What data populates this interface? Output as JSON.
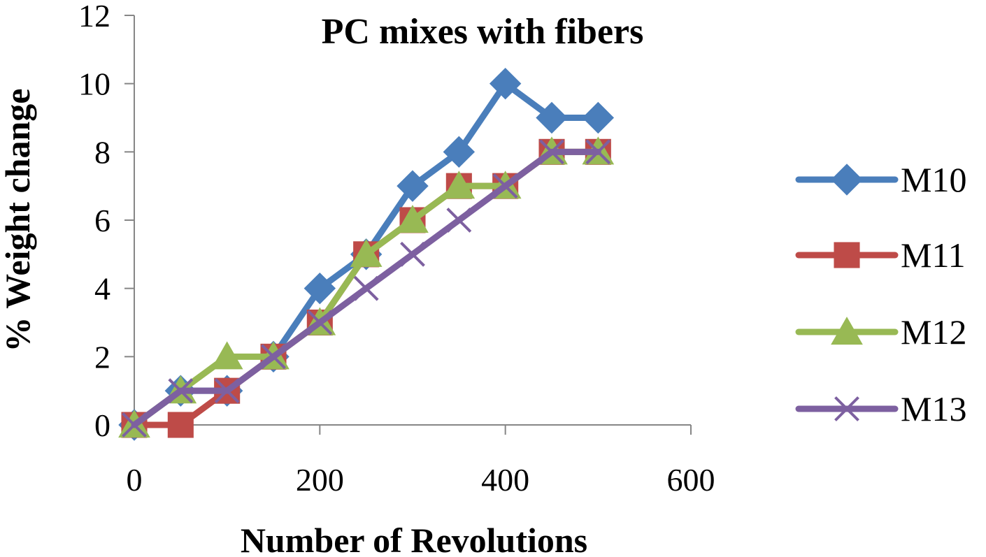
{
  "chart_data": {
    "type": "line",
    "title": "PC mixes with fibers",
    "xlabel": "Number of Revolutions",
    "ylabel": "% Weight change",
    "xlim": [
      0,
      600
    ],
    "ylim": [
      0,
      12
    ],
    "xticks": [
      "0",
      "200",
      "400",
      "600"
    ],
    "yticks": [
      "0",
      "2",
      "4",
      "6",
      "8",
      "10",
      "12"
    ],
    "grid": false,
    "legend_position": "right",
    "x": [
      0,
      50,
      100,
      150,
      200,
      250,
      300,
      350,
      400,
      450,
      500
    ],
    "series": [
      {
        "name": "M10",
        "color": "#4a7ebb",
        "marker": "diamond",
        "values": [
          0,
          1,
          1,
          2,
          4,
          5,
          7,
          8,
          10,
          9,
          9
        ]
      },
      {
        "name": "M11",
        "color": "#be4b48",
        "marker": "square",
        "values": [
          0,
          0,
          1,
          2,
          3,
          5,
          6,
          7,
          7,
          8,
          8
        ]
      },
      {
        "name": "M12",
        "color": "#98b954",
        "marker": "triangle",
        "values": [
          0,
          1,
          2,
          2,
          3,
          5,
          6,
          7,
          7,
          8,
          8
        ]
      },
      {
        "name": "M13",
        "color": "#7d60a0",
        "marker": "x",
        "values": [
          0,
          1,
          1,
          2,
          3,
          4,
          5,
          6,
          7,
          8,
          8
        ]
      }
    ]
  }
}
